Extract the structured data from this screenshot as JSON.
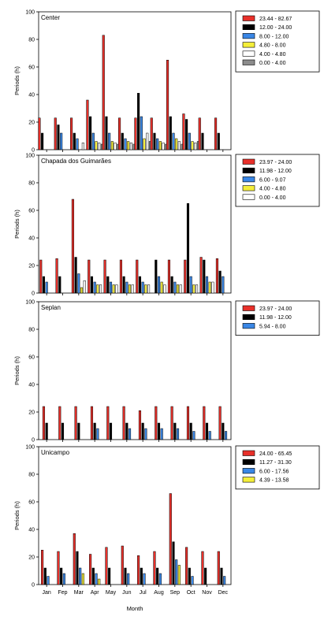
{
  "colors": {
    "c_red": "#e8302a",
    "c_black": "#000000",
    "c_blue": "#3a87e6",
    "c_yellow": "#f4ee3a",
    "c_white": "#ffffff",
    "c_gray": "#8c8c8c"
  },
  "chart_data": {
    "type": "bar",
    "xlabel": "Month",
    "categories": [
      "Jan",
      "Fep",
      "Mar",
      "Apr",
      "May",
      "Jun",
      "Jul",
      "Aug",
      "Sep",
      "Oct",
      "Nov",
      "Dec"
    ],
    "panels": [
      {
        "title": "Center",
        "ylabel": "Periods (h)",
        "ylim": [
          0,
          100
        ],
        "yticks": [
          0,
          20,
          40,
          60,
          80,
          100
        ],
        "legend_placement": "right",
        "series": [
          {
            "name": "23.44 - 82.67",
            "color": "c_red",
            "values": [
              23,
              23,
              23,
              36,
              83,
              23,
              23,
              23,
              65,
              26,
              23,
              23
            ]
          },
          {
            "name": "12.00 - 24.00",
            "color": "c_black",
            "values": [
              12,
              18,
              12,
              24,
              24,
              12,
              41,
              12,
              24,
              22,
              12,
              12
            ]
          },
          {
            "name": "8.00 - 12.00",
            "color": "c_blue",
            "values": [
              null,
              12,
              8,
              12,
              12,
              8,
              24,
              8,
              12,
              12,
              null,
              null
            ]
          },
          {
            "name": "4.80 - 8.00",
            "color": "c_yellow",
            "values": [
              null,
              null,
              null,
              6,
              6,
              6,
              8,
              6,
              8,
              6,
              null,
              null
            ]
          },
          {
            "name": "4.00 - 4.80",
            "color": "c_white",
            "values": [
              null,
              null,
              5,
              5,
              5,
              5,
              12,
              5,
              6,
              5,
              null,
              null
            ]
          },
          {
            "name": "0.00 - 4.00",
            "color": "c_gray",
            "values": [
              null,
              null,
              null,
              4,
              4,
              4,
              6,
              4,
              4,
              6,
              null,
              null
            ]
          }
        ]
      },
      {
        "title": "Chapada dos Guimarães",
        "ylabel": "Periods (h)",
        "ylim": [
          0,
          100
        ],
        "yticks": [
          0,
          20,
          40,
          60,
          80,
          100
        ],
        "legend_placement": "right",
        "series": [
          {
            "name": "23.97 - 24.00",
            "color": "c_red",
            "values": [
              24,
              25,
              68,
              24,
              24,
              24,
              24,
              null,
              24,
              24,
              26,
              25
            ]
          },
          {
            "name": "11.98 - 12.00",
            "color": "c_black",
            "values": [
              12,
              12,
              26,
              12,
              12,
              12,
              12,
              24,
              12,
              65,
              24,
              16
            ]
          },
          {
            "name": "6.00 - 9.07",
            "color": "c_blue",
            "values": [
              8,
              null,
              14,
              8,
              8,
              8,
              8,
              12,
              8,
              12,
              12,
              12
            ]
          },
          {
            "name": "4.00 - 4.80",
            "color": "c_yellow",
            "values": [
              null,
              null,
              4,
              6,
              6,
              6,
              6,
              8,
              6,
              6,
              8,
              null
            ]
          },
          {
            "name": "0.00 - 4.00",
            "color": "c_white",
            "values": [
              null,
              null,
              9,
              6,
              6,
              6,
              6,
              6,
              6,
              6,
              8,
              null
            ]
          }
        ]
      },
      {
        "title": "Seplan",
        "ylabel": "Periods (h)",
        "ylim": [
          0,
          100
        ],
        "yticks": [
          0,
          20,
          40,
          60,
          80,
          100
        ],
        "legend_placement": "right",
        "series": [
          {
            "name": "23.97 - 24.00",
            "color": "c_red",
            "values": [
              24,
              24,
              24,
              24,
              24,
              24,
              21,
              24,
              24,
              24,
              24,
              24
            ]
          },
          {
            "name": "11.98 - 12.00",
            "color": "c_black",
            "values": [
              12,
              12,
              12,
              12,
              12,
              12,
              12,
              12,
              12,
              12,
              12,
              12
            ]
          },
          {
            "name": "5.94 - 8.00",
            "color": "c_blue",
            "values": [
              null,
              null,
              null,
              8,
              null,
              8,
              8,
              8,
              8,
              6,
              6,
              6
            ]
          }
        ]
      },
      {
        "title": "Unicampo",
        "ylabel": "Periods (h)",
        "ylim": [
          0,
          100
        ],
        "yticks": [
          0,
          20,
          40,
          60,
          80,
          100
        ],
        "legend_placement": "right",
        "series": [
          {
            "name": "24.00 - 65.45",
            "color": "c_red",
            "values": [
              25,
              24,
              37,
              22,
              27,
              28,
              21,
              24,
              66,
              27,
              24,
              24
            ]
          },
          {
            "name": "11.27 - 31.30",
            "color": "c_black",
            "values": [
              12,
              12,
              24,
              12,
              12,
              12,
              12,
              12,
              31,
              12,
              12,
              12
            ]
          },
          {
            "name": "6.00 - 17.56",
            "color": "c_blue",
            "values": [
              6,
              8,
              12,
              8,
              null,
              8,
              8,
              8,
              18,
              6,
              null,
              6
            ]
          },
          {
            "name": "4.39 - 13.58",
            "color": "c_yellow",
            "values": [
              null,
              null,
              8,
              4,
              null,
              null,
              null,
              null,
              14,
              null,
              null,
              null
            ]
          }
        ]
      }
    ]
  }
}
